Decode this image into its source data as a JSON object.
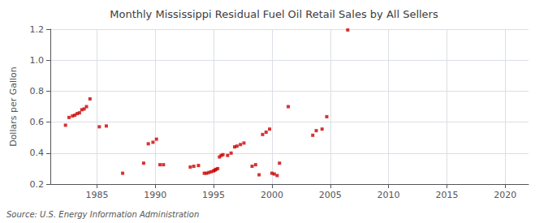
{
  "chart_data": {
    "type": "scatter",
    "title": "Monthly Mississippi Residual Fuel Oil Retail Sales by All Sellers",
    "ylabel": "Dollars per Gallon",
    "annotation": "Source: U.S. Energy Information Administration",
    "color": "#cc0000",
    "marker": "square",
    "grid": true,
    "xlim": [
      1981,
      2022
    ],
    "ylim": [
      0.2,
      1.2
    ],
    "xticks": [
      1985,
      1990,
      1995,
      2000,
      2005,
      2010,
      2015,
      2020
    ],
    "yticks": [
      0.2,
      0.4,
      0.6,
      0.8,
      {
        "value": 1.0,
        "label": "1.0"
      },
      1.2
    ],
    "x": [
      1982.3,
      1982.6,
      1982.9,
      1983.1,
      1983.3,
      1983.5,
      1983.7,
      1983.9,
      1984.1,
      1984.4,
      1985.2,
      1985.8,
      1987.2,
      1989.0,
      1989.4,
      1989.8,
      1990.1,
      1990.4,
      1990.7,
      1993.0,
      1993.3,
      1993.7,
      1994.2,
      1994.4,
      1994.6,
      1994.8,
      1995.0,
      1995.1,
      1995.2,
      1995.35,
      1995.5,
      1995.65,
      1995.8,
      1996.2,
      1996.5,
      1996.8,
      1997.0,
      1997.3,
      1997.6,
      1998.3,
      1998.6,
      1998.9,
      1999.2,
      1999.5,
      1999.8,
      2000.0,
      2000.2,
      2000.45,
      2000.65,
      2001.4,
      2003.5,
      2003.8,
      2004.3,
      2004.7,
      2006.5
    ],
    "values": [
      0.58,
      0.63,
      0.64,
      0.645,
      0.655,
      0.66,
      0.68,
      0.685,
      0.7,
      0.75,
      0.57,
      0.575,
      0.27,
      0.335,
      0.46,
      0.47,
      0.49,
      0.325,
      0.325,
      0.31,
      0.315,
      0.32,
      0.27,
      0.27,
      0.275,
      0.28,
      0.285,
      0.29,
      0.295,
      0.3,
      0.375,
      0.385,
      0.39,
      0.385,
      0.4,
      0.44,
      0.445,
      0.455,
      0.465,
      0.315,
      0.325,
      0.26,
      0.52,
      0.535,
      0.555,
      0.27,
      0.265,
      0.255,
      0.335,
      0.7,
      0.515,
      0.545,
      0.555,
      0.635,
      1.195
    ]
  }
}
